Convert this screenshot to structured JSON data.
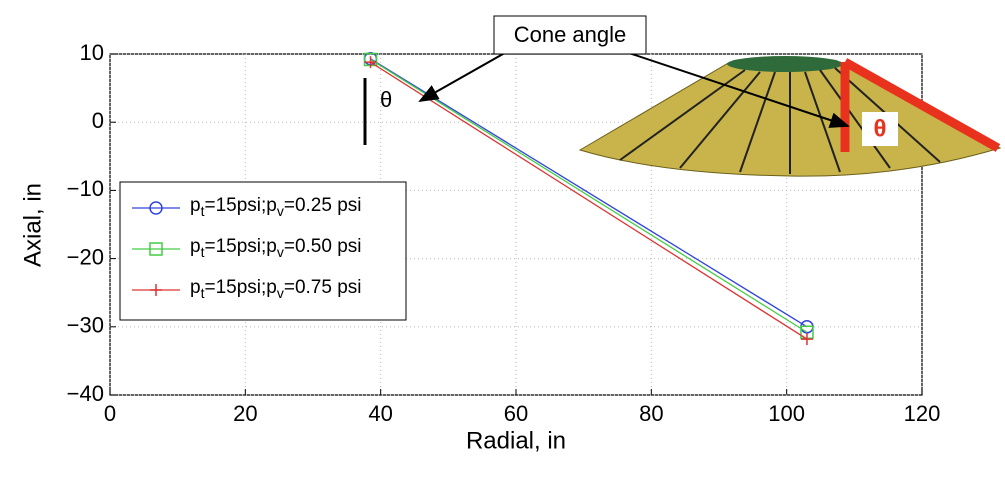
{
  "chart_data": {
    "type": "line",
    "xlabel": "Radial, in",
    "ylabel": "Axial, in",
    "xlim": [
      0,
      120
    ],
    "xticks": [
      0,
      20,
      40,
      60,
      80,
      100,
      120
    ],
    "ylim": [
      -40,
      10
    ],
    "yticks": [
      {
        "value": -40,
        "label": "−40"
      },
      {
        "value": -30,
        "label": "−30"
      },
      {
        "value": -20,
        "label": "−20"
      },
      {
        "value": -10,
        "label": "−10"
      },
      0,
      10
    ],
    "grid": true,
    "series": [
      {
        "name": "pt=15psi;pv=0.25 psi",
        "color": "#3344dd",
        "marker": "circle",
        "x": [
          38.5,
          103
        ],
        "values": [
          9.3,
          -30
        ]
      },
      {
        "name": "pt=15psi;pv=0.50 psi",
        "color": "#44cc44",
        "marker": "square",
        "x": [
          38.5,
          103
        ],
        "values": [
          9.2,
          -30.8
        ]
      },
      {
        "name": "pt=15psi;pv=0.75 psi",
        "color": "#dd3333",
        "marker": "plus",
        "x": [
          38.5,
          103
        ],
        "values": [
          8.8,
          -31.8
        ]
      }
    ],
    "annotations": [
      "Cone angle",
      "θ",
      "θ"
    ]
  }
}
